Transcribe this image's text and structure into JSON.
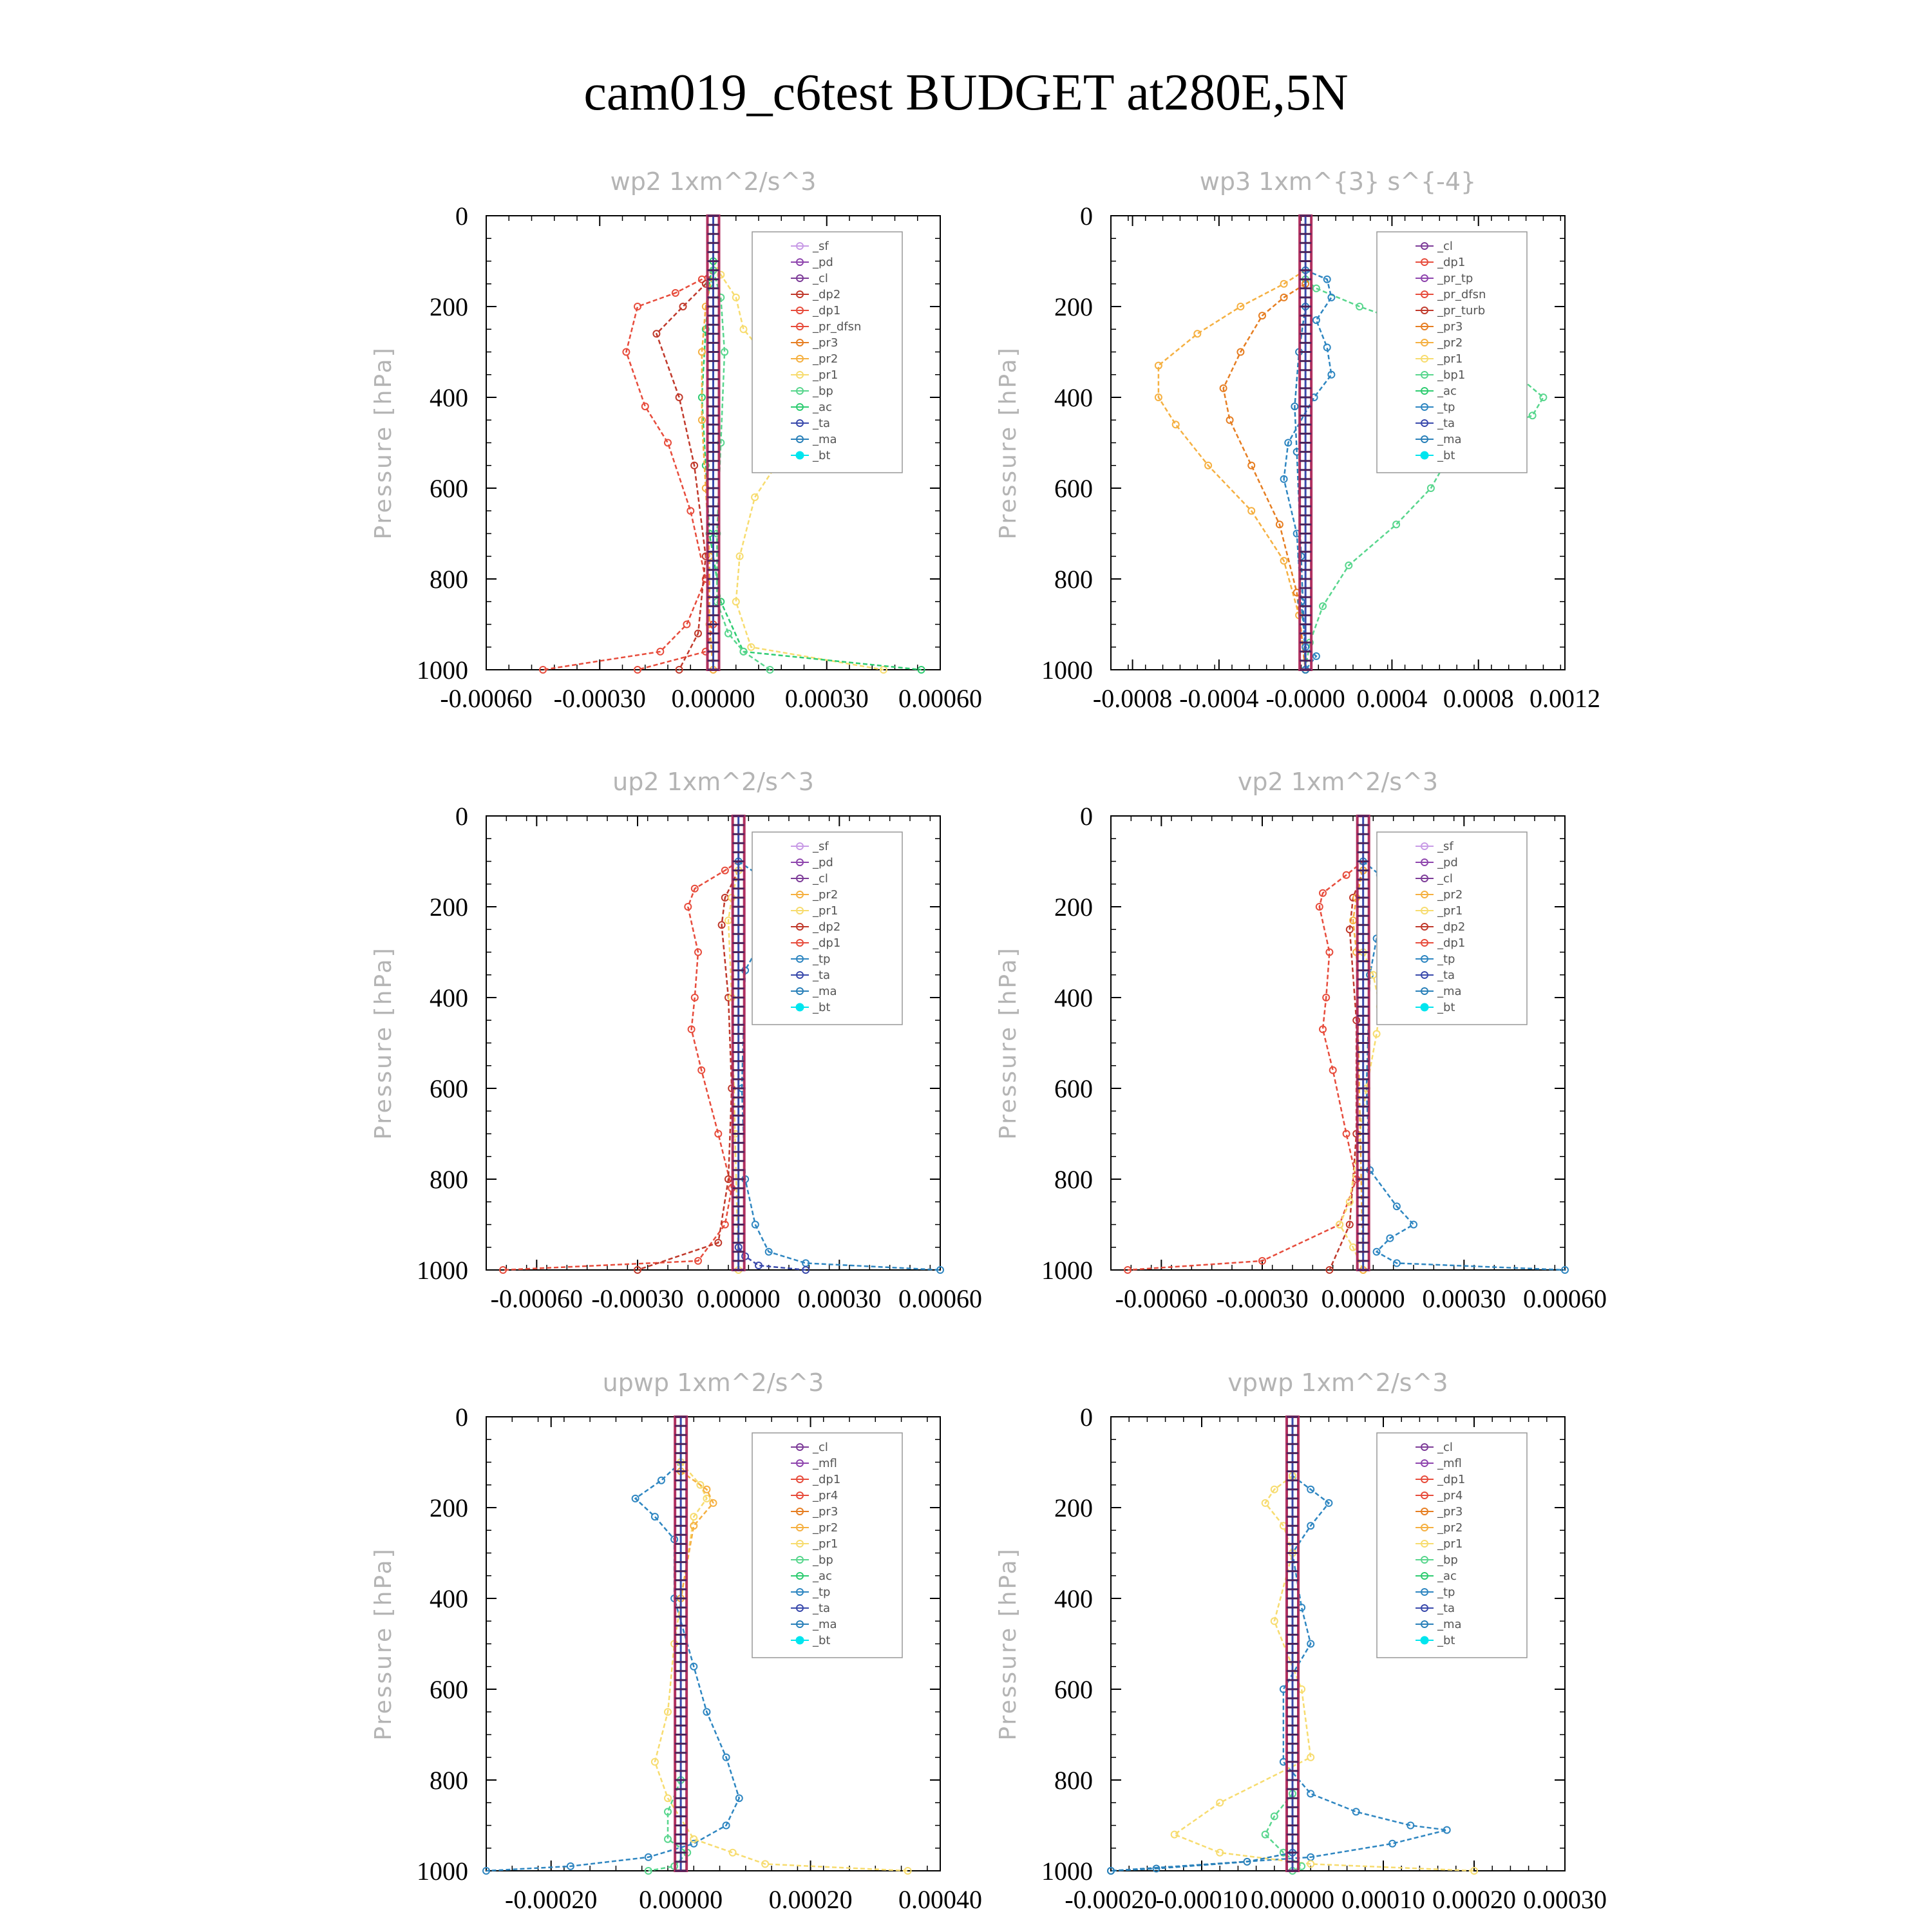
{
  "title": "cam019_c6test  BUDGET at280E,5N",
  "colors": {
    "sf": "#c89be6",
    "pd": "#8e44ad",
    "cl": "#7d3c98",
    "dp2": "#c0392b",
    "dp1": "#e74c3c",
    "pr_dfsn": "#e74c3c",
    "pr_tp": "#8e44ad",
    "pr_turb": "#c0392b",
    "pr4": "#e74c3c",
    "pr3": "#e67e22",
    "pr2": "#f5b041",
    "pr1": "#f7dc6f",
    "bp": "#58d68d",
    "ac": "#2ecc71",
    "tp": "#2e86c1",
    "ta": "#3949ab",
    "ma": "#2980b9",
    "bt": "#00e5ee",
    "mfl": "#8e44ad",
    "center": "#b03060"
  },
  "chart_data": [
    {
      "type": "line",
      "title": "wp2   1xm^2/s^3",
      "ylabel": "Pressure [hPa]",
      "ylim": [
        1000,
        0
      ],
      "xlim": [
        -0.0006,
        0.0006
      ],
      "xticks": [
        "-0.00060",
        "-0.00030",
        "0.00000",
        "0.00030",
        "0.00060"
      ],
      "xtick_values": [
        -0.0006,
        -0.0003,
        0.0,
        0.0003,
        0.0006
      ],
      "yticks": [
        "0",
        "200",
        "400",
        "600",
        "800",
        "1000"
      ],
      "legend": [
        "_sf",
        "_pd",
        "_cl",
        "_dp2",
        "_dp1",
        "_pr_dfsn",
        "_pr3",
        "_pr2",
        "_pr1",
        "_bp",
        "_ac",
        "_ta",
        "_ma",
        "_bt"
      ],
      "series": [
        {
          "key": "dp1",
          "x": [
            0,
            -3e-05,
            -0.0001,
            -0.0002,
            -0.00023,
            -0.00018,
            -0.00012,
            -6e-05,
            -2e-05,
            -7e-05,
            -0.00014,
            -0.00045
          ],
          "y": [
            120,
            140,
            170,
            200,
            300,
            420,
            500,
            650,
            800,
            900,
            960,
            1000
          ]
        },
        {
          "key": "dp2",
          "x": [
            0,
            -2e-05,
            -8e-05,
            -0.00015,
            -9e-05,
            -5e-05,
            -2e-05,
            -4e-05,
            -9e-05
          ],
          "y": [
            120,
            150,
            200,
            260,
            400,
            550,
            750,
            920,
            1000
          ]
        },
        {
          "key": "pr1",
          "x": [
            0,
            2e-05,
            6e-05,
            8e-05,
            0.00018,
            0.00025,
            0.00019,
            0.00011,
            7e-05,
            6e-05,
            0.0001,
            0.00045
          ],
          "y": [
            100,
            130,
            180,
            250,
            350,
            450,
            520,
            620,
            750,
            850,
            950,
            1000
          ]
        },
        {
          "key": "ac",
          "x": [
            0,
            -1e-05,
            -2e-05,
            -3e-05,
            -2e-05,
            -1e-05,
            2e-05,
            8e-05,
            0.00055
          ],
          "y": [
            100,
            150,
            250,
            400,
            550,
            700,
            850,
            960,
            1000
          ]
        },
        {
          "key": "pr2",
          "x": [
            0,
            -2e-05,
            -3e-05,
            -3e-05,
            -2e-05,
            -1e-05,
            -1e-05,
            0
          ],
          "y": [
            120,
            200,
            300,
            450,
            600,
            750,
            900,
            1000
          ]
        },
        {
          "key": "bp",
          "x": [
            0,
            2e-05,
            3e-05,
            2e-05,
            1e-05,
            1e-05,
            4e-05,
            8e-05,
            0.00015
          ],
          "y": [
            120,
            180,
            300,
            500,
            700,
            850,
            920,
            960,
            1000
          ]
        },
        {
          "key": "pr_dfsn",
          "x": [
            0,
            -2e-05,
            -0.0002
          ],
          "y": [
            900,
            960,
            1000
          ]
        }
      ]
    },
    {
      "type": "line",
      "title": "wp3   1xm^{3} s^{-4}",
      "ylabel": "Pressure [hPa]",
      "ylim": [
        1000,
        0
      ],
      "xlim": [
        -0.0009,
        0.0012
      ],
      "xticks": [
        "-0.0008",
        "-0.0004",
        "-0.0000",
        "0.0004",
        "0.0008",
        "0.0012"
      ],
      "xtick_values": [
        -0.0008,
        -0.0004,
        0.0,
        0.0004,
        0.0008,
        0.0012
      ],
      "yticks": [
        "0",
        "200",
        "400",
        "600",
        "800",
        "1000"
      ],
      "legend": [
        "_cl",
        "_dp1",
        "_pr_tp",
        "_pr_dfsn",
        "_pr_turb",
        "_pr3",
        "_pr2",
        "_pr1",
        "_bp1",
        "_ac",
        "_tp",
        "_ta",
        "_ma",
        "_bt"
      ],
      "series": [
        {
          "key": "bp",
          "x": [
            0,
            5e-05,
            0.00025,
            0.00055,
            0.0009,
            0.0011,
            0.00105,
            0.0007,
            0.00058,
            0.00042,
            0.0002,
            8e-05,
            2e-05,
            0
          ],
          "y": [
            140,
            160,
            200,
            250,
            320,
            400,
            440,
            500,
            600,
            680,
            770,
            860,
            940,
            1000
          ]
        },
        {
          "key": "pr2",
          "x": [
            0,
            -0.0001,
            -0.0003,
            -0.0005,
            -0.00068,
            -0.00068,
            -0.0006,
            -0.00045,
            -0.00025,
            -0.0001,
            -3e-05,
            0
          ],
          "y": [
            120,
            150,
            200,
            260,
            330,
            400,
            460,
            550,
            650,
            760,
            880,
            1000
          ]
        },
        {
          "key": "pr3",
          "x": [
            0,
            -0.0001,
            -0.0002,
            -0.0003,
            -0.00038,
            -0.00035,
            -0.00025,
            -0.00012,
            -4e-05,
            0
          ],
          "y": [
            150,
            180,
            220,
            300,
            380,
            450,
            550,
            680,
            830,
            1000
          ]
        },
        {
          "key": "tp",
          "x": [
            0,
            0.0001,
            0.00012,
            5e-05,
            0.0001,
            0.00012,
            4e-05,
            -8e-05,
            -0.0001,
            -4e-05,
            -2e-05,
            0,
            5e-05,
            0
          ],
          "y": [
            120,
            140,
            180,
            230,
            290,
            350,
            400,
            500,
            580,
            700,
            850,
            950,
            970,
            1000
          ]
        },
        {
          "key": "ma",
          "x": [
            0,
            -3e-05,
            -5e-05,
            -4e-05,
            -2e-05,
            0
          ],
          "y": [
            200,
            300,
            420,
            520,
            750,
            1000
          ]
        }
      ]
    },
    {
      "type": "line",
      "title": "up2   1xm^2/s^3",
      "ylabel": "Pressure [hPa]",
      "ylim": [
        1000,
        0
      ],
      "xlim": [
        -0.00075,
        0.0006
      ],
      "xticks": [
        "-0.00060",
        "-0.00030",
        "0.00000",
        "0.00030",
        "0.00060"
      ],
      "xtick_values": [
        -0.0006,
        -0.0003,
        0.0,
        0.0003,
        0.0006
      ],
      "yticks": [
        "0",
        "200",
        "400",
        "600",
        "800",
        "1000"
      ],
      "legend": [
        "_sf",
        "_pd",
        "_cl",
        "_pr2",
        "_pr1",
        "_dp2",
        "_dp1",
        "_tp",
        "_ta",
        "_ma",
        "_bt"
      ],
      "series": [
        {
          "key": "dp1",
          "x": [
            0,
            -4e-05,
            -0.00013,
            -0.00015,
            -0.00012,
            -0.00013,
            -0.00014,
            -0.00011,
            -6e-05,
            -2e-05,
            -4e-05,
            -0.00012,
            -0.0007
          ],
          "y": [
            100,
            120,
            160,
            200,
            300,
            400,
            470,
            560,
            700,
            820,
            900,
            980,
            1000
          ]
        },
        {
          "key": "dp2",
          "x": [
            0,
            -4e-05,
            -5e-05,
            -3e-05,
            -2e-05,
            -3e-05,
            -6e-05,
            -0.0003
          ],
          "y": [
            120,
            180,
            240,
            400,
            600,
            800,
            940,
            1000
          ]
        },
        {
          "key": "tp",
          "x": [
            0,
            6e-05,
            0.00014,
            0.00015,
            8e-05,
            2e-05,
            1e-05,
            2e-05,
            5e-05,
            9e-05,
            0.0002,
            0.0006
          ],
          "y": [
            100,
            130,
            170,
            200,
            260,
            340,
            600,
            800,
            900,
            960,
            985,
            1000
          ]
        },
        {
          "key": "pr1",
          "x": [
            0,
            -2e-05,
            -3e-05,
            -2e-05,
            -1e-05,
            0
          ],
          "y": [
            120,
            180,
            230,
            400,
            700,
            1000
          ]
        },
        {
          "key": "ta",
          "x": [
            0,
            2e-05,
            6e-05,
            0.0002
          ],
          "y": [
            950,
            970,
            990,
            1000
          ]
        }
      ]
    },
    {
      "type": "line",
      "title": "vp2   1xm^2/s^3",
      "ylabel": "Pressure [hPa]",
      "ylim": [
        1000,
        0
      ],
      "xlim": [
        -0.00075,
        0.0006
      ],
      "xticks": [
        "-0.00060",
        "-0.00030",
        "0.00000",
        "0.00030",
        "0.00060"
      ],
      "xtick_values": [
        -0.0006,
        -0.0003,
        0.0,
        0.0003,
        0.0006
      ],
      "yticks": [
        "0",
        "200",
        "400",
        "600",
        "800",
        "1000"
      ],
      "legend": [
        "_sf",
        "_pd",
        "_cl",
        "_pr2",
        "_pr1",
        "_dp2",
        "_dp1",
        "_tp",
        "_ta",
        "_ma",
        "_bt"
      ],
      "series": [
        {
          "key": "dp1",
          "x": [
            0,
            -5e-05,
            -0.00012,
            -0.00013,
            -0.0001,
            -0.00011,
            -0.00012,
            -9e-05,
            -5e-05,
            -2e-05,
            -7e-05,
            -0.0003,
            -0.0007
          ],
          "y": [
            100,
            130,
            170,
            200,
            300,
            400,
            470,
            560,
            700,
            800,
            900,
            980,
            1000
          ]
        },
        {
          "key": "dp2",
          "x": [
            0,
            -3e-05,
            -4e-05,
            -2e-05,
            -2e-05,
            -4e-05,
            -0.0001
          ],
          "y": [
            120,
            180,
            250,
            450,
            700,
            900,
            1000
          ]
        },
        {
          "key": "tp",
          "x": [
            0,
            5e-05,
            0.0001,
            0.0001,
            4e-05,
            2e-05,
            1e-05,
            2e-05,
            0.0001,
            0.00015,
            8e-05,
            4e-05,
            0.0001,
            0.0006
          ],
          "y": [
            100,
            130,
            170,
            220,
            270,
            350,
            600,
            780,
            860,
            900,
            930,
            960,
            985,
            1000
          ]
        },
        {
          "key": "pr1",
          "x": [
            0,
            3e-05,
            5e-05,
            4e-05,
            1e-05,
            -4e-05,
            -7e-05,
            -3e-05,
            0
          ],
          "y": [
            300,
            350,
            420,
            480,
            600,
            850,
            900,
            950,
            1000
          ]
        },
        {
          "key": "pr2",
          "x": [
            0,
            -2e-05,
            -3e-05,
            -2e-05,
            0
          ],
          "y": [
            120,
            180,
            230,
            300,
            1000
          ]
        }
      ]
    },
    {
      "type": "line",
      "title": "upwp   1xm^2/s^3",
      "ylabel": "Pressure [hPa]",
      "ylim": [
        1000,
        0
      ],
      "xlim": [
        -0.0003,
        0.0004
      ],
      "xticks": [
        "-0.00020",
        "0.00000",
        "0.00020",
        "0.00040"
      ],
      "xtick_values": [
        -0.0002,
        0.0,
        0.0002,
        0.0004
      ],
      "yticks": [
        "0",
        "200",
        "400",
        "600",
        "800",
        "1000"
      ],
      "legend": [
        "_cl",
        "_mfl",
        "_dp1",
        "_pr4",
        "_pr3",
        "_pr2",
        "_pr1",
        "_bp",
        "_ac",
        "_tp",
        "_ta",
        "_ma",
        "_bt"
      ],
      "series": [
        {
          "key": "tp",
          "x": [
            0,
            -3e-05,
            -7e-05,
            -4e-05,
            -1e-05,
            -1e-05,
            2e-05,
            4e-05,
            7e-05,
            9e-05,
            7e-05,
            2e-05,
            -5e-05,
            -0.00017,
            -0.0003
          ],
          "y": [
            100,
            140,
            180,
            220,
            270,
            400,
            550,
            650,
            750,
            840,
            900,
            940,
            970,
            990,
            1000
          ]
        },
        {
          "key": "pr1",
          "x": [
            0,
            3e-05,
            4e-05,
            2e-05,
            -1e-05,
            -2e-05,
            -4e-05,
            -2e-05,
            2e-05,
            8e-05,
            0.00013,
            0.00035
          ],
          "y": [
            100,
            150,
            180,
            220,
            500,
            650,
            760,
            840,
            930,
            960,
            985,
            1000
          ]
        },
        {
          "key": "pr2",
          "x": [
            0,
            4e-05,
            5e-05,
            2e-05,
            0
          ],
          "y": [
            120,
            160,
            190,
            240,
            400
          ]
        },
        {
          "key": "bp",
          "x": [
            0,
            -2e-05,
            -2e-05,
            1e-05,
            -1e-05,
            -5e-05
          ],
          "y": [
            800,
            870,
            930,
            960,
            990,
            1000
          ]
        }
      ]
    },
    {
      "type": "line",
      "title": "vpwp   1xm^2/s^3",
      "ylabel": "Pressure [hPa]",
      "ylim": [
        1000,
        0
      ],
      "xlim": [
        -0.0002,
        0.0003
      ],
      "xticks": [
        "-0.00020",
        "-0.00010",
        "0.00000",
        "0.00010",
        "0.00020",
        "0.00030"
      ],
      "xtick_values": [
        -0.0002,
        -0.0001,
        0.0,
        0.0001,
        0.0002,
        0.0003
      ],
      "yticks": [
        "0",
        "200",
        "400",
        "600",
        "800",
        "1000"
      ],
      "legend": [
        "_cl",
        "_mfl",
        "_dp1",
        "_pr4",
        "_pr3",
        "_pr2",
        "_pr1",
        "_bp",
        "_ac",
        "_tp",
        "_ta",
        "_ma",
        "_bt"
      ],
      "series": [
        {
          "key": "tp",
          "x": [
            0,
            2e-05,
            4e-05,
            2e-05,
            0,
            1e-05,
            2e-05,
            -1e-05,
            -1e-05,
            2e-05,
            7e-05,
            0.00013,
            0.00017,
            0.00011,
            2e-05,
            -0.0002
          ],
          "y": [
            130,
            160,
            190,
            240,
            300,
            420,
            500,
            600,
            760,
            830,
            870,
            900,
            910,
            940,
            970,
            1000
          ]
        },
        {
          "key": "pr1",
          "x": [
            0,
            -2e-05,
            -3e-05,
            -1e-05,
            0,
            -2e-05,
            1e-05,
            2e-05,
            -8e-05,
            -0.00013,
            -8e-05,
            2e-05,
            0.0002
          ],
          "y": [
            130,
            160,
            190,
            240,
            300,
            450,
            600,
            750,
            850,
            920,
            960,
            985,
            1000
          ]
        },
        {
          "key": "bp",
          "x": [
            0,
            -2e-05,
            -3e-05,
            -1e-05,
            1e-05,
            0
          ],
          "y": [
            830,
            880,
            920,
            960,
            990,
            1000
          ]
        },
        {
          "key": "ma",
          "x": [
            0,
            -5e-05,
            -0.00015,
            -0.0002
          ],
          "y": [
            960,
            980,
            995,
            1000
          ]
        }
      ]
    }
  ]
}
